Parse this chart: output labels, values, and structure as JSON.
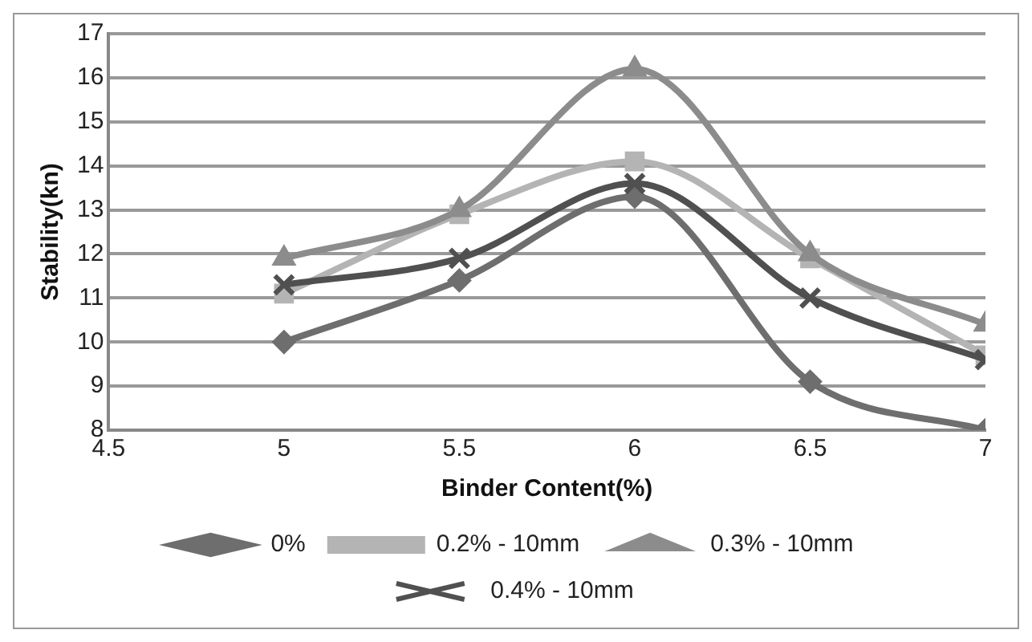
{
  "chart_data": {
    "type": "line",
    "xlabel": "Binder Content(%)",
    "ylabel": "Stability(kn)",
    "x": [
      5,
      5.5,
      6,
      6.5,
      7
    ],
    "xlim": [
      4.5,
      7
    ],
    "xticks": [
      4.5,
      5,
      5.5,
      6,
      6.5,
      7
    ],
    "ylim": [
      8,
      17
    ],
    "yticks": [
      8,
      9,
      10,
      11,
      12,
      13,
      14,
      15,
      16,
      17
    ],
    "grid": "y",
    "legend": "bottom",
    "series": [
      {
        "name": "0%",
        "color": "#6e6e6e",
        "marker": "diamond",
        "values": [
          10,
          11.4,
          13.3,
          9.1,
          8.0
        ]
      },
      {
        "name": "0.2% - 10mm",
        "color": "#b4b4b4",
        "marker": "square",
        "values": [
          11.1,
          12.9,
          14.1,
          11.9,
          9.7
        ]
      },
      {
        "name": "0.3% - 10mm",
        "color": "#8c8c8c",
        "marker": "triangle",
        "values": [
          11.9,
          13.0,
          16.2,
          12.0,
          10.4
        ]
      },
      {
        "name": "0.4% - 10mm",
        "color": "#505050",
        "marker": "cross",
        "values": [
          11.3,
          11.9,
          13.6,
          11.0,
          9.6
        ]
      }
    ]
  }
}
